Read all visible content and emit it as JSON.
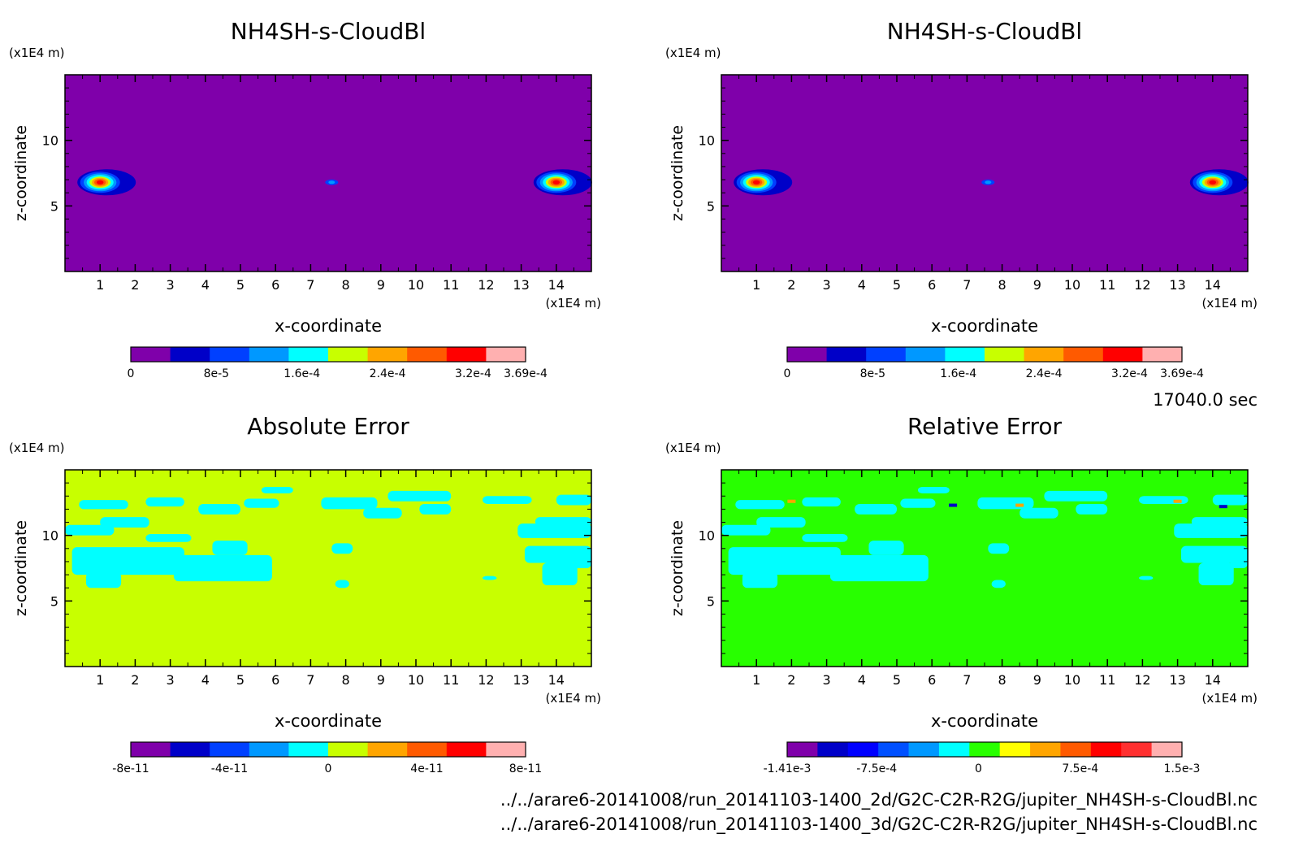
{
  "time_label": "17040.0 sec",
  "files": [
    "../../arare6-20141008/run_20141103-1400_2d/G2C-C2R-R2G/jupiter_NH4SH-s-CloudBl.nc",
    "../../arare6-20141008/run_20141103-1400_3d/G2C-C2R-R2G/jupiter_NH4SH-s-CloudBl.nc"
  ],
  "chart_data": [
    {
      "type": "heatmap",
      "title": "NH4SH-s-CloudBl",
      "xlabel": "x-coordinate",
      "ylabel": "z-coordinate",
      "x_unit": "(x1E4 m)",
      "y_unit": "(x1E4 m)",
      "xlim": [
        0,
        15
      ],
      "ylim": [
        0,
        15
      ],
      "x_ticks": [
        1,
        2,
        3,
        4,
        5,
        6,
        7,
        8,
        9,
        10,
        11,
        12,
        13,
        14
      ],
      "y_ticks": [
        5,
        10
      ],
      "background_color": "#7f00aa",
      "colorbar": {
        "colors": [
          "#7f00aa",
          "#0000c8",
          "#0040ff",
          "#0098ff",
          "#00ffff",
          "#c8ff00",
          "#ffa500",
          "#ff5a00",
          "#ff0000",
          "#ffb0b0"
        ],
        "tick_labels": [
          "0",
          "8e-5",
          "1.6e-4",
          "2.4e-4",
          "3.2e-4",
          "3.69e-4"
        ],
        "tick_values": [
          0,
          8e-05,
          0.00016,
          0.00024,
          0.00032,
          0.000369
        ]
      },
      "features": [
        {
          "x": 1.0,
          "z": 6.8,
          "max": 0.000369
        },
        {
          "x": 14.0,
          "z": 6.8,
          "max": 0.000369
        },
        {
          "x": 7.6,
          "z": 6.8,
          "max": 0.00012
        }
      ]
    },
    {
      "type": "heatmap",
      "title": "NH4SH-s-CloudBl",
      "xlabel": "x-coordinate",
      "ylabel": "z-coordinate",
      "x_unit": "(x1E4 m)",
      "y_unit": "(x1E4 m)",
      "xlim": [
        0,
        15
      ],
      "ylim": [
        0,
        15
      ],
      "x_ticks": [
        1,
        2,
        3,
        4,
        5,
        6,
        7,
        8,
        9,
        10,
        11,
        12,
        13,
        14
      ],
      "y_ticks": [
        5,
        10
      ],
      "background_color": "#7f00aa",
      "colorbar": {
        "colors": [
          "#7f00aa",
          "#0000c8",
          "#0040ff",
          "#0098ff",
          "#00ffff",
          "#c8ff00",
          "#ffa500",
          "#ff5a00",
          "#ff0000",
          "#ffb0b0"
        ],
        "tick_labels": [
          "0",
          "8e-5",
          "1.6e-4",
          "2.4e-4",
          "3.2e-4",
          "3.69e-4"
        ],
        "tick_values": [
          0,
          8e-05,
          0.00016,
          0.00024,
          0.00032,
          0.000369
        ]
      },
      "features": [
        {
          "x": 1.0,
          "z": 6.8,
          "max": 0.000369
        },
        {
          "x": 14.0,
          "z": 6.8,
          "max": 0.000369
        },
        {
          "x": 7.6,
          "z": 6.8,
          "max": 0.00012
        }
      ]
    },
    {
      "type": "heatmap",
      "title": "Absolute Error",
      "xlabel": "x-coordinate",
      "ylabel": "z-coordinate",
      "x_unit": "(x1E4 m)",
      "y_unit": "(x1E4 m)",
      "xlim": [
        0,
        15
      ],
      "ylim": [
        0,
        15
      ],
      "x_ticks": [
        1,
        2,
        3,
        4,
        5,
        6,
        7,
        8,
        9,
        10,
        11,
        12,
        13,
        14
      ],
      "y_ticks": [
        5,
        10
      ],
      "background_color": "#c8ff00",
      "patch_color": "#00ffff",
      "colorbar": {
        "colors": [
          "#7f00aa",
          "#0000c8",
          "#0040ff",
          "#0098ff",
          "#00ffff",
          "#c8ff00",
          "#ffa500",
          "#ff5a00",
          "#ff0000",
          "#ffb0b0"
        ],
        "tick_labels": [
          "-8e-11",
          "-4e-11",
          "0",
          "4e-11",
          "8e-11"
        ],
        "tick_values": [
          -8e-11,
          -4e-11,
          0,
          4e-11,
          8e-11
        ]
      }
    },
    {
      "type": "heatmap",
      "title": "Relative Error",
      "xlabel": "x-coordinate",
      "ylabel": "z-coordinate",
      "x_unit": "(x1E4 m)",
      "y_unit": "(x1E4 m)",
      "xlim": [
        0,
        15
      ],
      "ylim": [
        0,
        15
      ],
      "x_ticks": [
        1,
        2,
        3,
        4,
        5,
        6,
        7,
        8,
        9,
        10,
        11,
        12,
        13,
        14
      ],
      "y_ticks": [
        5,
        10
      ],
      "background_color": "#28ff00",
      "patch_color": "#00ffff",
      "colorbar": {
        "colors": [
          "#7f00aa",
          "#0000c8",
          "#0000ff",
          "#0050ff",
          "#0098ff",
          "#00ffff",
          "#28ff00",
          "#ffff00",
          "#ffa500",
          "#ff5a00",
          "#ff0000",
          "#ff3030",
          "#ffb0b0"
        ],
        "tick_labels": [
          "-1.41e-3",
          "-7.5e-4",
          "0",
          "7.5e-4",
          "1.5e-3"
        ],
        "tick_values": [
          -0.00141,
          -0.00075,
          0,
          0.00075,
          0.0015
        ]
      }
    }
  ]
}
